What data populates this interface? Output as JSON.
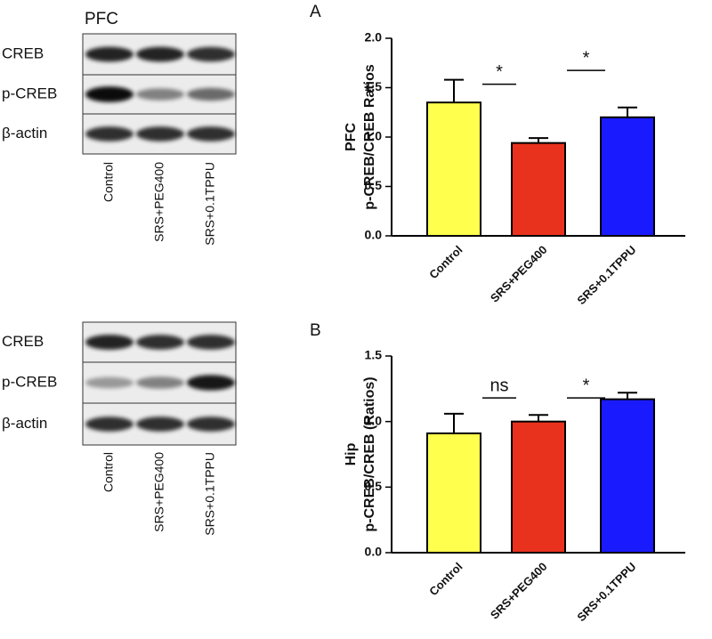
{
  "blots": [
    {
      "title": "PFC",
      "rows": [
        "CREB",
        "p-CREB",
        "β-actin"
      ],
      "lanes": [
        "Control",
        "SRS+PEG400",
        "SRS+0.1TPPU"
      ]
    },
    {
      "title": "Hip",
      "rows": [
        "CREB",
        "p-CREB",
        "β-actin"
      ],
      "lanes": [
        "Control",
        "SRS+PEG400",
        "SRS+0.1TPPU"
      ]
    }
  ],
  "chart_data": [
    {
      "type": "bar",
      "panel": "A",
      "ylabel": [
        "PFC",
        "p-CREB/CREB Ratios"
      ],
      "categories": [
        "Control",
        "SRS+PEG400",
        "SRS+0.1TPPU"
      ],
      "values": [
        1.35,
        0.94,
        1.2
      ],
      "errors": [
        0.23,
        0.05,
        0.1
      ],
      "colors": [
        "#ffff4d",
        "#e8321e",
        "#1a1aff"
      ],
      "ylim": [
        0,
        2.0
      ],
      "yticks": [
        {
          "value": 0,
          "label": "0.0"
        },
        {
          "value": 0.5,
          "label": "0.5"
        },
        {
          "value": 1,
          "label": "1.0"
        },
        {
          "value": 1.5,
          "label": "1.5"
        },
        {
          "value": 2,
          "label": "2.0"
        }
      ],
      "annotations": [
        "*",
        "*"
      ]
    },
    {
      "type": "bar",
      "panel": "B",
      "ylabel": [
        "Hip",
        "p-CREB/CREB (Ratios)"
      ],
      "categories": [
        "Control",
        "SRS+PEG400",
        "SRS+0.1TPPU"
      ],
      "values": [
        0.91,
        1.0,
        1.17
      ],
      "errors": [
        0.15,
        0.05,
        0.05
      ],
      "colors": [
        "#ffff4d",
        "#e8321e",
        "#1a1aff"
      ],
      "ylim": [
        0,
        1.5
      ],
      "yticks": [
        {
          "value": 0,
          "label": "0.0"
        },
        {
          "value": 0.5,
          "label": "0.5"
        },
        {
          "value": 1,
          "label": "1.0"
        },
        {
          "value": 1.5,
          "label": "1.5"
        }
      ],
      "annotations": [
        "ns",
        "*"
      ]
    }
  ]
}
